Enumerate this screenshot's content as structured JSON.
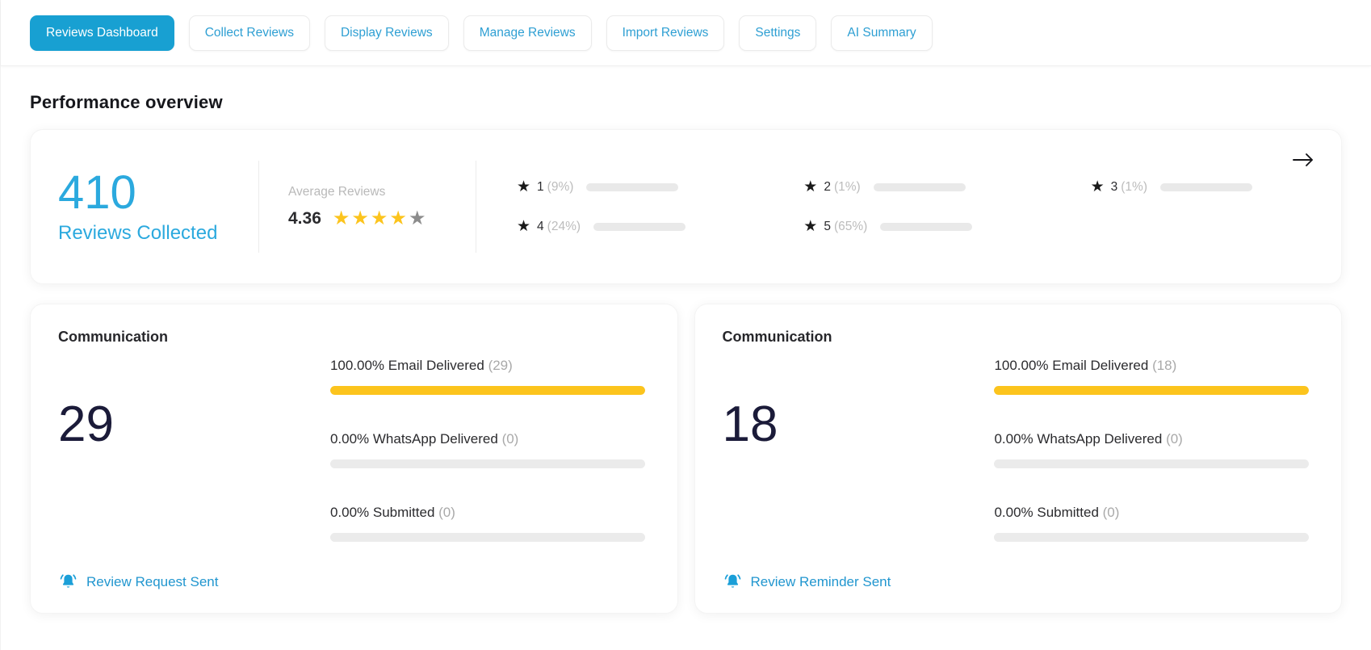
{
  "tabs": [
    {
      "label": "Reviews Dashboard",
      "active": true
    },
    {
      "label": "Collect Reviews",
      "active": false
    },
    {
      "label": "Display Reviews",
      "active": false
    },
    {
      "label": "Manage Reviews",
      "active": false
    },
    {
      "label": "Import Reviews",
      "active": false
    },
    {
      "label": "Settings",
      "active": false
    },
    {
      "label": "AI Summary",
      "active": false
    }
  ],
  "page_title": "Performance overview",
  "overview": {
    "total": "410",
    "total_label": "Reviews Collected",
    "average_label": "Average Reviews",
    "average_value": "4.36",
    "star_rating": {
      "filled": 4,
      "total": 5
    },
    "ratings": [
      {
        "star": "1",
        "percent_label": "(9%)",
        "value": 9
      },
      {
        "star": "2",
        "percent_label": "(1%)",
        "value": 1
      },
      {
        "star": "3",
        "percent_label": "(1%)",
        "value": 1
      },
      {
        "star": "4",
        "percent_label": "(24%)",
        "value": 24
      },
      {
        "star": "5",
        "percent_label": "(65%)",
        "value": 65
      }
    ]
  },
  "communication_cards": [
    {
      "title": "Communication",
      "total": "29",
      "metrics": [
        {
          "label": "100.00% Email Delivered",
          "count": "(29)",
          "value": 100
        },
        {
          "label": "0.00% WhatsApp Delivered",
          "count": "(0)",
          "value": 0
        },
        {
          "label": "0.00% Submitted",
          "count": "(0)",
          "value": 0
        }
      ],
      "link_label": "Review Request Sent"
    },
    {
      "title": "Communication",
      "total": "18",
      "metrics": [
        {
          "label": "100.00% Email Delivered",
          "count": "(18)",
          "value": 100
        },
        {
          "label": "0.00% WhatsApp Delivered",
          "count": "(0)",
          "value": 0
        },
        {
          "label": "0.00% Submitted",
          "count": "(0)",
          "value": 0
        }
      ],
      "link_label": "Review Reminder Sent"
    }
  ],
  "icons": {
    "arrow_right": "arrow-right-icon",
    "bell": "bell-icon",
    "star": "star-icon"
  },
  "colors": {
    "accent_blue": "#18A0D2",
    "link_blue": "#2196CF",
    "stat_blue": "#2BA9DE",
    "bar_yellow": "#FCC41D",
    "bar_track": "#EBEBEB",
    "navy_number": "#1B1B39",
    "muted_gray": "#B9B9B9"
  }
}
